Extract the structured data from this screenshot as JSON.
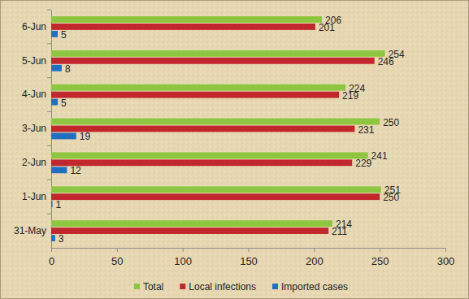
{
  "chart_data": {
    "type": "bar",
    "orientation": "horizontal",
    "categories": [
      "31-May",
      "1-Jun",
      "2-Jun",
      "3-Jun",
      "4-Jun",
      "5-Jun",
      "6-Jun"
    ],
    "series": [
      {
        "name": "Total",
        "color": "#8dc63f",
        "values": [
          214,
          251,
          241,
          250,
          224,
          254,
          206
        ]
      },
      {
        "name": "Local infections",
        "color": "#c1272d",
        "values": [
          211,
          250,
          229,
          231,
          219,
          246,
          201
        ]
      },
      {
        "name": "Imported cases",
        "color": "#1f6fc5",
        "values": [
          3,
          1,
          12,
          19,
          5,
          8,
          5
        ]
      }
    ],
    "xlim": [
      0,
      300
    ],
    "xticks": [
      0,
      50,
      100,
      150,
      200,
      250,
      300
    ],
    "grid": false,
    "legend": "bottom",
    "data_labels": true
  }
}
